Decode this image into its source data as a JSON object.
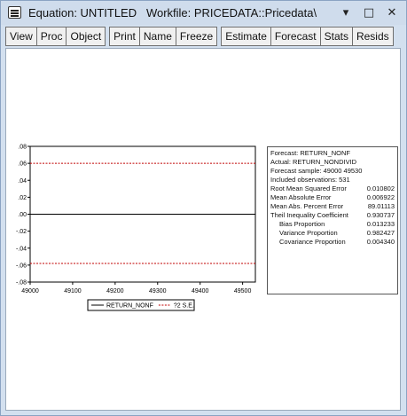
{
  "window": {
    "title": "Equation: UNTITLED   Workfile: PRICEDATA::Pricedata\\",
    "controls": {
      "minimize": "▾",
      "maximize": "□",
      "close": "✕"
    }
  },
  "toolbar": {
    "buttons": [
      "View",
      "Proc",
      "Object",
      "Print",
      "Name",
      "Freeze",
      "Estimate",
      "Forecast",
      "Stats",
      "Resids"
    ]
  },
  "stats": {
    "forecast": "Forecast: RETURN_NONF",
    "actual": "Actual: RETURN_NONDIVID",
    "sample": "Forecast sample: 49000 49530",
    "obs": "Included observations: 531",
    "rows": [
      {
        "label": "Root Mean Squared Error",
        "value": "0.010802",
        "indent": false
      },
      {
        "label": "Mean Absolute Error",
        "value": "0.006922",
        "indent": false
      },
      {
        "label": "Mean Abs. Percent Error",
        "value": "89.01113",
        "indent": false
      },
      {
        "label": "Theil Inequality Coefficient",
        "value": "0.930737",
        "indent": false
      },
      {
        "label": "Bias Proportion",
        "value": "0.013233",
        "indent": true
      },
      {
        "label": "Variance Proportion",
        "value": "0.982427",
        "indent": true
      },
      {
        "label": "Covariance Proportion",
        "value": "0.004340",
        "indent": true
      }
    ]
  },
  "chart_data": {
    "type": "line",
    "ylim": [
      -0.08,
      0.08
    ],
    "xlim": [
      49000,
      49530
    ],
    "y_ticks": [
      ".08",
      ".06",
      ".04",
      ".02",
      ".00",
      "-.02",
      "-.04",
      "-.06",
      "-.08"
    ],
    "x_ticks": [
      "49000",
      "49100",
      "49200",
      "49300",
      "49400",
      "49500"
    ],
    "series": [
      {
        "name": "RETURN_NONF",
        "values": [
          0.0,
          0.0
        ],
        "x": [
          49000,
          49530
        ],
        "color": "#000000",
        "dash": false
      },
      {
        "name": "?2 S.E.",
        "values": [
          0.06,
          0.06
        ],
        "x": [
          49000,
          49530
        ],
        "color": "#c00000",
        "dash": true
      },
      {
        "name": "",
        "values": [
          -0.058,
          -0.058
        ],
        "x": [
          49000,
          49530
        ],
        "color": "#c00000",
        "dash": true
      }
    ]
  }
}
